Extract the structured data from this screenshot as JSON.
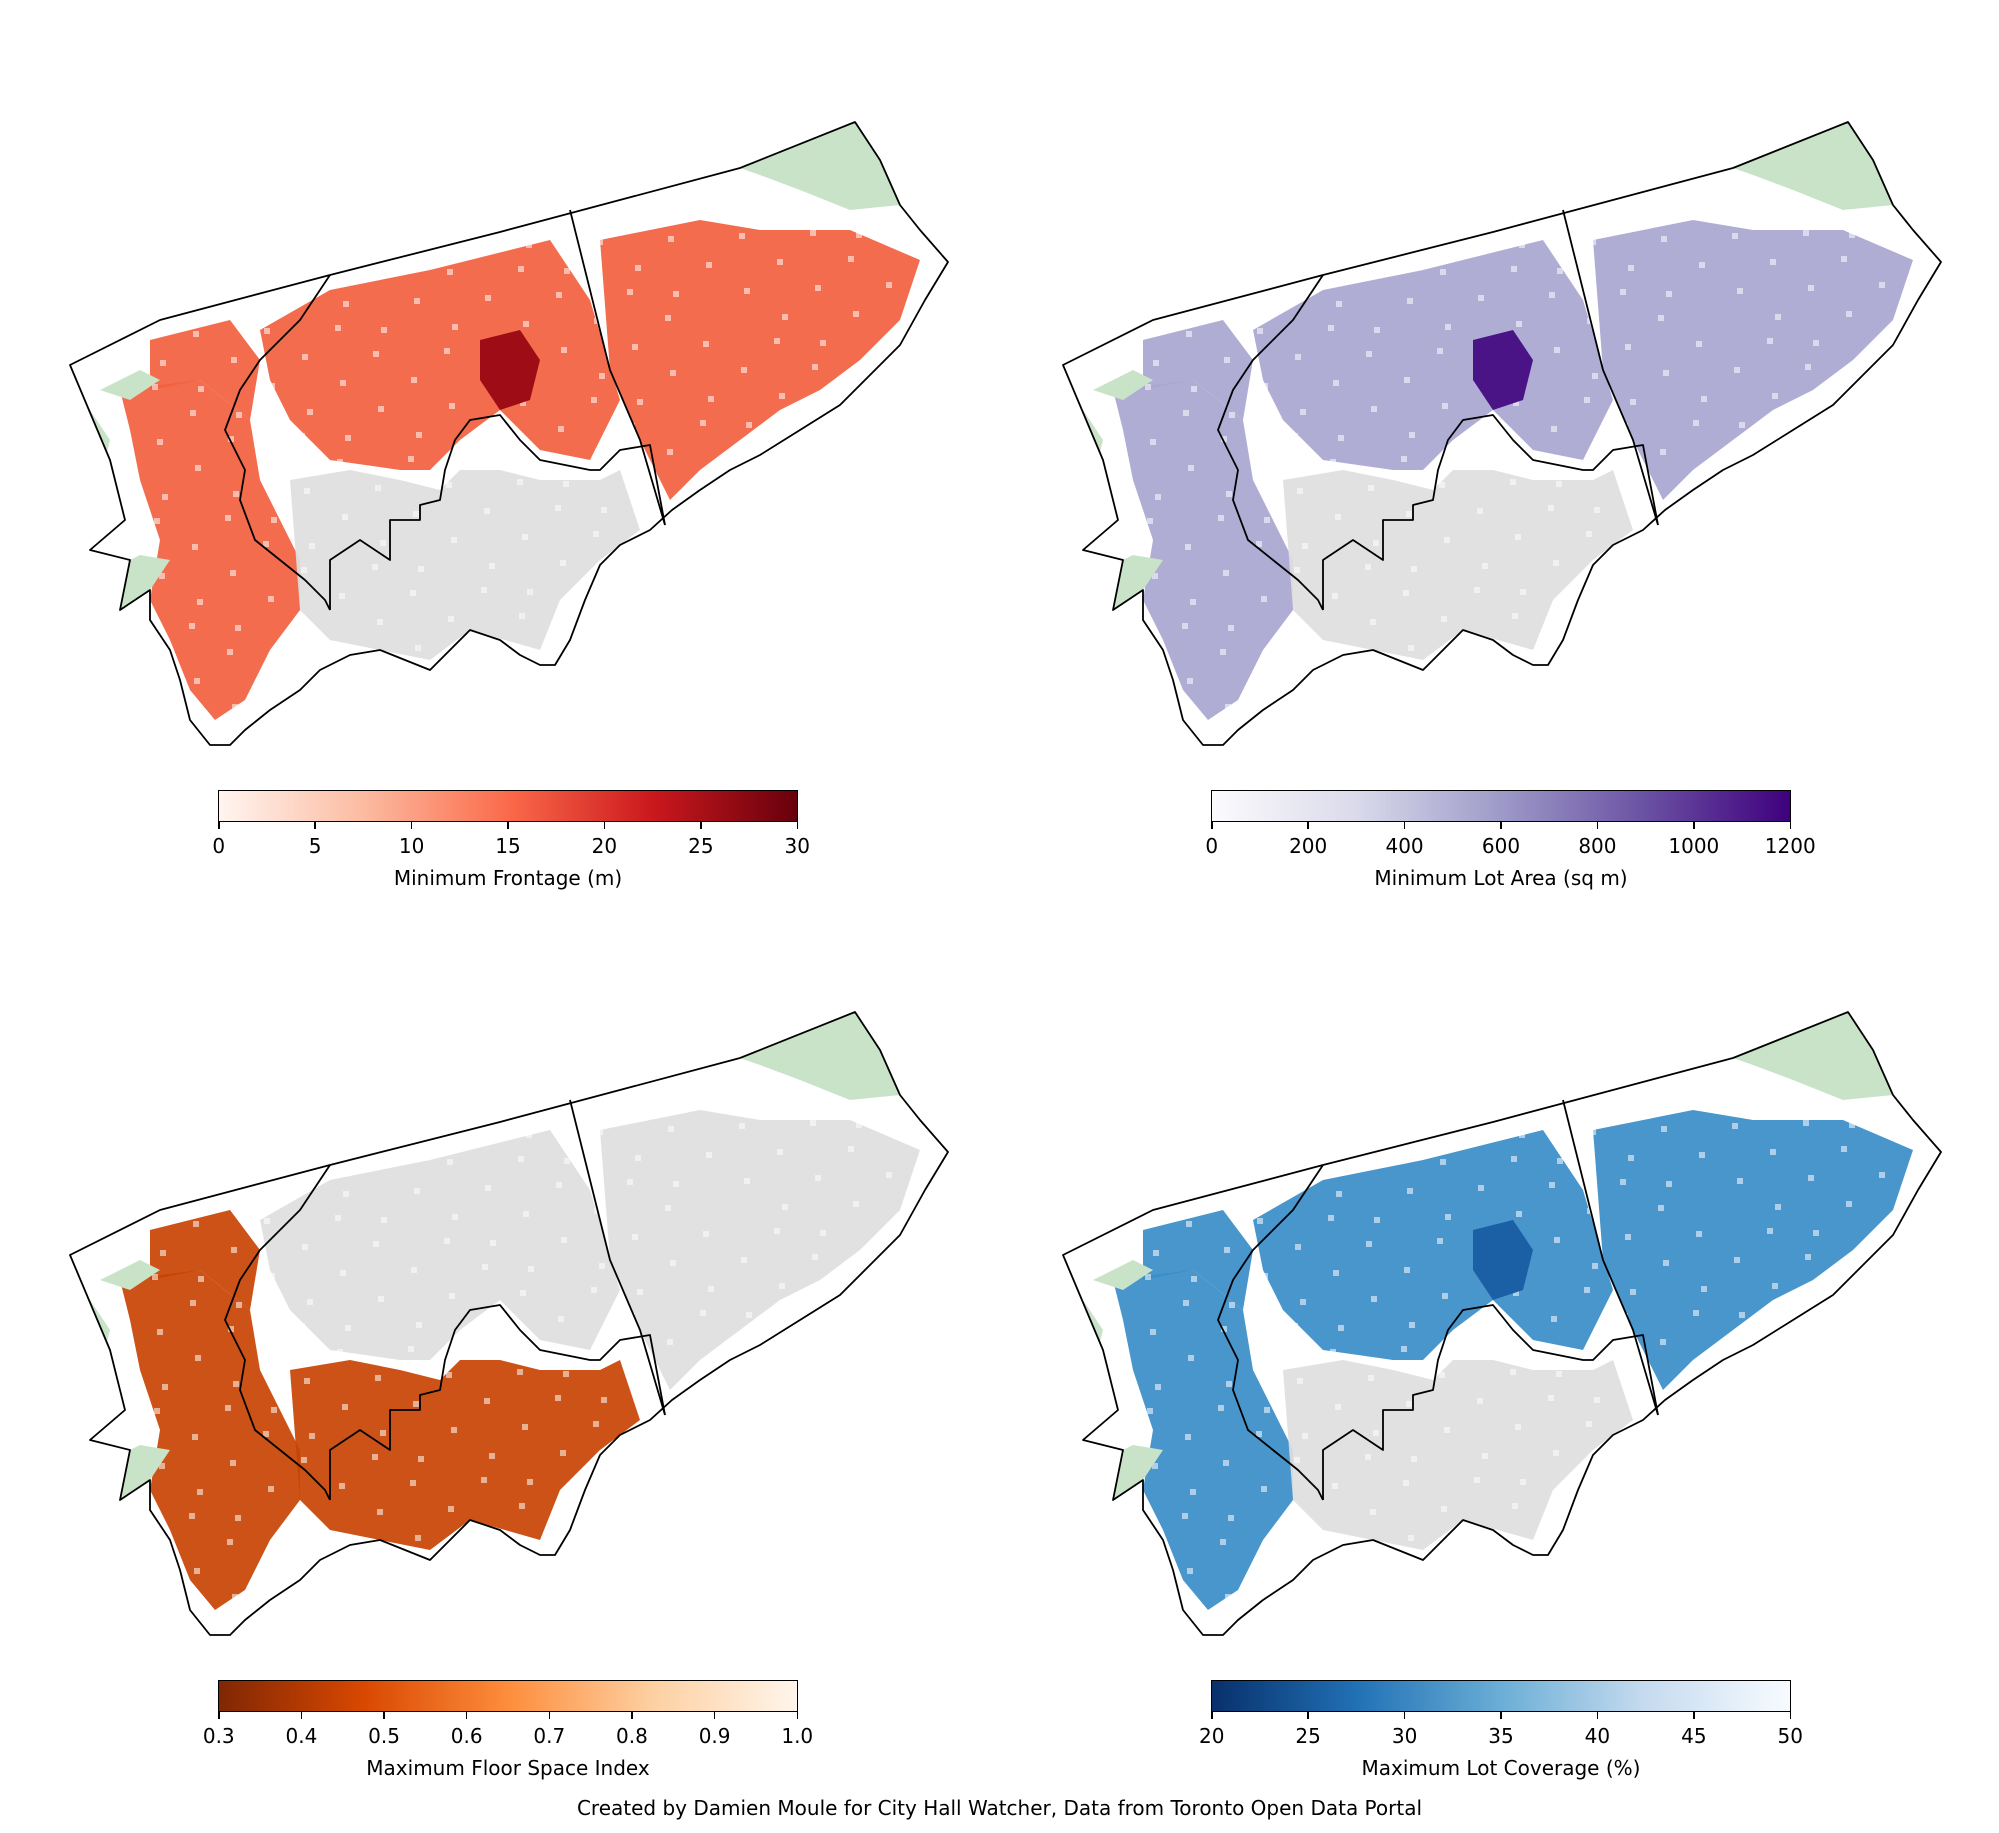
{
  "figure": {
    "credit": "Created by Damien Moule for City Hall Watcher, Data from Toronto Open Data Portal"
  },
  "panels": [
    {
      "id": "frontage",
      "colorbar": {
        "label": "Minimum Frontage (m)",
        "ticks": [
          "0",
          "5",
          "10",
          "15",
          "20",
          "25",
          "30"
        ],
        "range": [
          0,
          30
        ],
        "gradient": [
          "#fff5f0",
          "#fcbba1",
          "#fb6a4a",
          "#cb181d",
          "#67000d"
        ]
      },
      "map_colors": {
        "dominant": "#f2603f",
        "dark": "#9e0d15",
        "other": "#f59076"
      }
    },
    {
      "id": "lot_area",
      "colorbar": {
        "label": "Minimum Lot Area (sq m)",
        "ticks": [
          "0",
          "200",
          "400",
          "600",
          "800",
          "1000",
          "1200"
        ],
        "range": [
          0,
          1200
        ],
        "gradient": [
          "#fcfbfd",
          "#dadaeb",
          "#9e9ac8",
          "#6a51a3",
          "#3f007d"
        ]
      },
      "map_colors": {
        "dominant": "#a9a6d1",
        "dark": "#4a1486",
        "other": "#c9c7e3"
      }
    },
    {
      "id": "fsi",
      "colorbar": {
        "label": "Maximum Floor Space Index",
        "ticks": [
          "0.3",
          "0.4",
          "0.5",
          "0.6",
          "0.7",
          "0.8",
          "0.9",
          "1.0"
        ],
        "range": [
          0.3,
          1.0
        ],
        "gradient": [
          "#7f2704",
          "#d94801",
          "#fd8d3c",
          "#fdd0a2",
          "#fff5eb"
        ]
      },
      "map_colors": {
        "dominant": "#c94303",
        "dark": "#8c2d04",
        "other": "#f98f3e"
      }
    },
    {
      "id": "coverage",
      "colorbar": {
        "label": "Maximum Lot Coverage (%)",
        "ticks": [
          "20",
          "25",
          "30",
          "35",
          "40",
          "45",
          "50"
        ],
        "range": [
          20,
          50
        ],
        "gradient": [
          "#08306b",
          "#2171b5",
          "#6baed6",
          "#c6dbef",
          "#f7fbff"
        ]
      },
      "map_colors": {
        "dominant": "#3a8dc8",
        "dark": "#1b5fa5",
        "other": "#8fc1e0"
      }
    }
  ],
  "legend_colors": {
    "unzoned_grey": "#dedede",
    "parks_green": "#c9e3c9",
    "boundary": "#000000"
  }
}
